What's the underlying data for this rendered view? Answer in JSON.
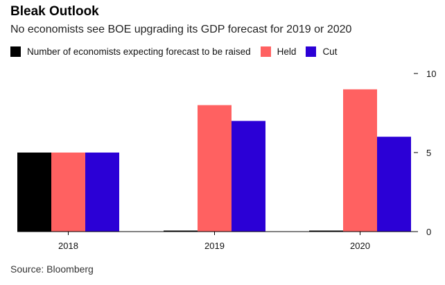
{
  "title": "Bleak Outlook",
  "subtitle": "No economists see BOE upgrading its GDP forecast for 2019 or 2020",
  "source": "Source: Bloomberg",
  "colors": {
    "raised": "#000000",
    "held": "#ff6161",
    "cut": "#2b00d6"
  },
  "chart_data": {
    "type": "bar",
    "title": "Bleak Outlook",
    "subtitle": "No economists see BOE upgrading its GDP forecast for 2019 or 2020",
    "categories": [
      "2018",
      "2019",
      "2020"
    ],
    "series": [
      {
        "name": "Number of economists expecting forecast to be raised",
        "values": [
          5,
          0,
          0
        ]
      },
      {
        "name": "Held",
        "values": [
          5,
          8,
          9
        ]
      },
      {
        "name": "Cut",
        "values": [
          5,
          7,
          6
        ]
      }
    ],
    "ylim": [
      0,
      10
    ],
    "yticks": [
      0,
      5,
      10
    ],
    "xlabel": "",
    "ylabel": "",
    "legend": "top-left",
    "grid": false
  }
}
